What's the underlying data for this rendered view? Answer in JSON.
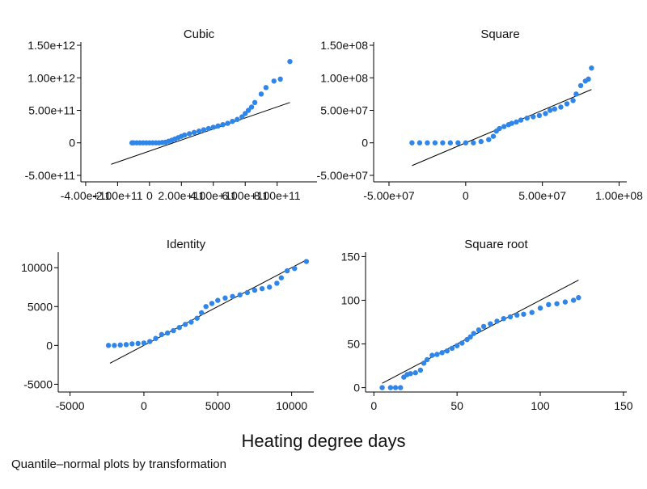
{
  "figure": {
    "title": "Heating degree days",
    "note": "Quantile–normal plots by transformation",
    "point_color": "#2f86e8",
    "line_color": "#000000",
    "axis_color": "#000000"
  },
  "chart_data": [
    {
      "type": "scatter",
      "title": "Cubic",
      "xlim": [
        -430000000000,
        1050000000000
      ],
      "ylim": [
        -600000000000,
        1550000000000
      ],
      "xticks": [
        -400000000000,
        -200000000000,
        0,
        200000000000,
        400000000000,
        600000000000,
        800000000000
      ],
      "xtick_labels": [
        "-4.00e+11",
        "-2.00e+11",
        "0",
        "2.00e+11",
        "4.00e+11",
        "6.00e+11",
        "8.00e+11"
      ],
      "yticks": [
        -500000000000,
        0,
        500000000000,
        1000000000000,
        1500000000000
      ],
      "ytick_labels": [
        "-5.00e+11",
        "0",
        "5.00e+11",
        "1.00e+12",
        "1.50e+12"
      ],
      "points": [
        [
          -110000000000,
          0
        ],
        [
          -100000000000,
          0
        ],
        [
          -80000000000,
          0
        ],
        [
          -60000000000,
          0
        ],
        [
          -40000000000,
          0
        ],
        [
          -20000000000,
          0
        ],
        [
          0,
          0
        ],
        [
          20000000000,
          0
        ],
        [
          40000000000,
          0
        ],
        [
          60000000000,
          0
        ],
        [
          80000000000,
          5000000000
        ],
        [
          100000000000,
          10000000000
        ],
        [
          120000000000,
          25000000000
        ],
        [
          140000000000,
          40000000000
        ],
        [
          160000000000,
          60000000000
        ],
        [
          180000000000,
          80000000000
        ],
        [
          200000000000,
          100000000000
        ],
        [
          220000000000,
          120000000000
        ],
        [
          250000000000,
          140000000000
        ],
        [
          280000000000,
          160000000000
        ],
        [
          310000000000,
          180000000000
        ],
        [
          340000000000,
          200000000000
        ],
        [
          370000000000,
          220000000000
        ],
        [
          400000000000,
          240000000000
        ],
        [
          430000000000,
          260000000000
        ],
        [
          460000000000,
          280000000000
        ],
        [
          490000000000,
          300000000000
        ],
        [
          520000000000,
          330000000000
        ],
        [
          550000000000,
          360000000000
        ],
        [
          580000000000,
          400000000000
        ],
        [
          600000000000,
          450000000000
        ],
        [
          620000000000,
          500000000000
        ],
        [
          640000000000,
          550000000000
        ],
        [
          660000000000,
          620000000000
        ],
        [
          700000000000,
          750000000000
        ],
        [
          730000000000,
          850000000000
        ],
        [
          780000000000,
          950000000000
        ],
        [
          820000000000,
          980000000000
        ],
        [
          880000000000,
          1250000000000
        ]
      ],
      "fit_line": [
        [
          -240000000000,
          -330000000000
        ],
        [
          880000000000,
          620000000000
        ]
      ]
    },
    {
      "type": "scatter",
      "title": "Square",
      "xlim": [
        -60000000,
        105000000
      ],
      "ylim": [
        -60000000,
        155000000
      ],
      "xticks": [
        -50000000,
        0,
        50000000,
        100000000
      ],
      "xtick_labels": [
        "-5.00e+07",
        "0",
        "5.00e+07",
        "1.00e+08"
      ],
      "yticks": [
        -50000000,
        0,
        50000000,
        100000000,
        150000000
      ],
      "ytick_labels": [
        "-5.00e+07",
        "0",
        "5.00e+07",
        "1.00e+08",
        "1.50e+08"
      ],
      "points": [
        [
          -35000000,
          0
        ],
        [
          -30000000,
          0
        ],
        [
          -25000000,
          0
        ],
        [
          -20000000,
          0
        ],
        [
          -15000000,
          0
        ],
        [
          -10000000,
          0
        ],
        [
          -5000000,
          0
        ],
        [
          0,
          0
        ],
        [
          5000000,
          0
        ],
        [
          10000000,
          2000000
        ],
        [
          15000000,
          5000000
        ],
        [
          18000000,
          10000000
        ],
        [
          20000000,
          18000000
        ],
        [
          22000000,
          22000000
        ],
        [
          25000000,
          25000000
        ],
        [
          28000000,
          28000000
        ],
        [
          30000000,
          30000000
        ],
        [
          33000000,
          32000000
        ],
        [
          36000000,
          35000000
        ],
        [
          40000000,
          38000000
        ],
        [
          44000000,
          40000000
        ],
        [
          48000000,
          42000000
        ],
        [
          52000000,
          45000000
        ],
        [
          55000000,
          50000000
        ],
        [
          58000000,
          52000000
        ],
        [
          62000000,
          55000000
        ],
        [
          66000000,
          60000000
        ],
        [
          70000000,
          65000000
        ],
        [
          72000000,
          75000000
        ],
        [
          75000000,
          88000000
        ],
        [
          78000000,
          95000000
        ],
        [
          80000000,
          98000000
        ],
        [
          82000000,
          115000000
        ]
      ],
      "fit_line": [
        [
          -35000000,
          -35000000
        ],
        [
          82000000,
          82000000
        ]
      ]
    },
    {
      "type": "scatter",
      "title": "Identity",
      "xlim": [
        -5800,
        11500
      ],
      "ylim": [
        -6000,
        12000
      ],
      "xticks": [
        -5000,
        0,
        5000,
        10000
      ],
      "xtick_labels": [
        "-5000",
        "0",
        "5000",
        "10000"
      ],
      "yticks": [
        -5000,
        0,
        5000,
        10000
      ],
      "ytick_labels": [
        "-5000",
        "0",
        "5000",
        "10000"
      ],
      "points": [
        [
          -2400,
          0
        ],
        [
          -2000,
          0
        ],
        [
          -1600,
          50
        ],
        [
          -1200,
          100
        ],
        [
          -800,
          200
        ],
        [
          -400,
          250
        ],
        [
          0,
          300
        ],
        [
          400,
          500
        ],
        [
          800,
          900
        ],
        [
          1200,
          1400
        ],
        [
          1600,
          1600
        ],
        [
          2000,
          1900
        ],
        [
          2400,
          2300
        ],
        [
          2800,
          2700
        ],
        [
          3200,
          3000
        ],
        [
          3600,
          3500
        ],
        [
          3900,
          4200
        ],
        [
          4200,
          5000
        ],
        [
          4600,
          5400
        ],
        [
          5000,
          5800
        ],
        [
          5500,
          6100
        ],
        [
          6000,
          6300
        ],
        [
          6500,
          6500
        ],
        [
          7000,
          6800
        ],
        [
          7500,
          7100
        ],
        [
          8000,
          7300
        ],
        [
          8500,
          7500
        ],
        [
          9000,
          8000
        ],
        [
          9300,
          8700
        ],
        [
          9700,
          9600
        ],
        [
          10200,
          9900
        ],
        [
          11000,
          10800
        ]
      ],
      "fit_line": [
        [
          -2300,
          -2300
        ],
        [
          11000,
          11000
        ]
      ]
    },
    {
      "type": "scatter",
      "title": "Square root",
      "xlim": [
        -5,
        152
      ],
      "ylim": [
        -5,
        155
      ],
      "xticks": [
        0,
        50,
        100,
        150
      ],
      "xtick_labels": [
        "0",
        "50",
        "100",
        "150"
      ],
      "yticks": [
        0,
        50,
        100,
        150
      ],
      "ytick_labels": [
        "0",
        "50",
        "100",
        "150"
      ],
      "points": [
        [
          5,
          0
        ],
        [
          10,
          0
        ],
        [
          13,
          0
        ],
        [
          16,
          0
        ],
        [
          18,
          12
        ],
        [
          20,
          15
        ],
        [
          22,
          16
        ],
        [
          25,
          17
        ],
        [
          28,
          20
        ],
        [
          30,
          28
        ],
        [
          32,
          32
        ],
        [
          35,
          37
        ],
        [
          38,
          38
        ],
        [
          41,
          40
        ],
        [
          44,
          42
        ],
        [
          47,
          45
        ],
        [
          50,
          48
        ],
        [
          53,
          51
        ],
        [
          56,
          55
        ],
        [
          58,
          58
        ],
        [
          60,
          62
        ],
        [
          63,
          66
        ],
        [
          66,
          70
        ],
        [
          70,
          73
        ],
        [
          74,
          76
        ],
        [
          78,
          79
        ],
        [
          82,
          81
        ],
        [
          86,
          83
        ],
        [
          90,
          84
        ],
        [
          95,
          86
        ],
        [
          100,
          91
        ],
        [
          105,
          95
        ],
        [
          110,
          96
        ],
        [
          115,
          98
        ],
        [
          120,
          100
        ],
        [
          123,
          103
        ]
      ],
      "fit_line": [
        [
          5,
          5
        ],
        [
          123,
          123
        ]
      ]
    }
  ]
}
